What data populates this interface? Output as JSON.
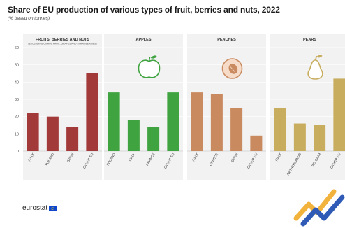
{
  "title": "Share of EU production of various types of fruit, berries and nuts, 2022",
  "subtitle": "(% based on tonnes)",
  "footer": {
    "logo_text": "eurostat"
  },
  "colors": {
    "fruit_berries_nuts": "#a33a3a",
    "apples": "#3fa33f",
    "peaches": "#c98a60",
    "pears": "#c8ad5f",
    "panel_background": "#f2f2f2",
    "grid": "#ffffff"
  },
  "chart_data": {
    "type": "bar",
    "ylim": [
      0,
      60
    ],
    "yticks": [
      0,
      10,
      20,
      30,
      40,
      50,
      60
    ],
    "grid": true,
    "panels": [
      {
        "title": "FRUITS, BERRIES AND NUTS",
        "subtitle": "(EXCLUDING CITRUS FRUIT, GRAPES AND STRAWBERRIES)",
        "icon": "none",
        "color": "#a33a3a",
        "categories": [
          "ITALY",
          "POLAND",
          "SPAIN",
          "OTHER EU"
        ],
        "values": [
          22,
          20,
          14,
          45
        ]
      },
      {
        "title": "APPLES",
        "subtitle": "",
        "icon": "apple-icon",
        "color": "#3fa33f",
        "categories": [
          "POLAND",
          "ITALY",
          "FRANCE",
          "OTHER EU"
        ],
        "values": [
          34,
          18,
          14,
          34
        ]
      },
      {
        "title": "PEACHES",
        "subtitle": "",
        "icon": "peach-icon",
        "color": "#c98a60",
        "categories": [
          "ITALY",
          "GREECE",
          "SPAIN",
          "OTHER EU"
        ],
        "values": [
          34,
          33,
          25,
          9
        ]
      },
      {
        "title": "PEARS",
        "subtitle": "",
        "icon": "pear-icon",
        "color": "#c8ad5f",
        "categories": [
          "ITALY",
          "NETHERLANDS",
          "BELGIUM",
          "OTHER EU"
        ],
        "values": [
          25,
          16,
          15,
          42
        ]
      }
    ]
  }
}
